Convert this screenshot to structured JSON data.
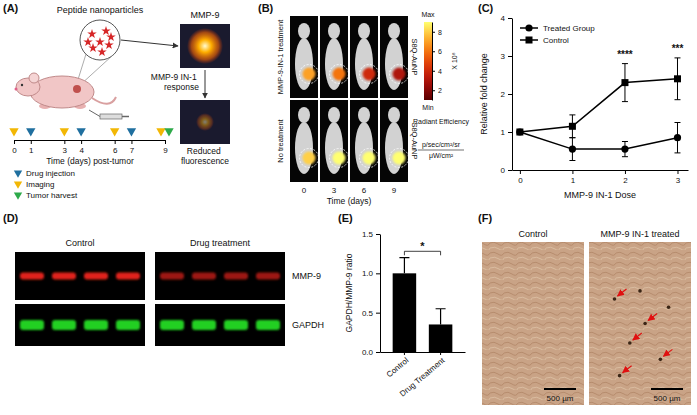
{
  "panels": {
    "A": {
      "letter": "(A)",
      "nanoparticle_label": "Peptide nanoparticles",
      "target_label": "MMP-9",
      "response_label": "MMP-9 IN-1 response",
      "result_label": "Reduced fluorescence",
      "timeline": {
        "title": "Time (days) post-tumor",
        "xlim": [
          0,
          9
        ],
        "xticks": [
          0,
          1,
          3,
          4,
          6,
          7,
          9
        ],
        "events": [
          {
            "name": "Drug injection",
            "color": "#1f6f9f",
            "days": [
              1,
              4,
              7
            ]
          },
          {
            "name": "Imaging",
            "color": "#f2b705",
            "days": [
              0,
              3,
              6,
              9
            ]
          },
          {
            "name": "Tumor harvest",
            "color": "#2eaa4a",
            "days": [
              9
            ]
          }
        ]
      }
    },
    "B": {
      "letter": "(B)",
      "row_labels": [
        "MMP-9-IN-1 treatment",
        "No treatment"
      ],
      "probe_labels": [
        "S8Q-AuNP",
        "S8Q-AuNP"
      ],
      "days": [
        0,
        3,
        6,
        9
      ],
      "xlabel": "Time (days)",
      "tumor_signal": [
        [
          7,
          6,
          4,
          3
        ],
        [
          8,
          9,
          9,
          9
        ]
      ],
      "colorbar": {
        "title": "Radiant Efficiency",
        "units": [
          "p/sec/cm²/sr",
          "μW/cm²"
        ],
        "scale_label": "X 10⁸",
        "max_label": "Max",
        "min_label": "Min",
        "range": [
          1,
          9
        ],
        "ticks": [
          2,
          4,
          6,
          8
        ]
      }
    },
    "C": {
      "letter": "(C)"
    },
    "D": {
      "letter": "(D)",
      "groups": [
        "Control",
        "Drug treatment"
      ],
      "bands": [
        {
          "name": "MMP-9",
          "color": "#e0201b"
        },
        {
          "name": "GAPDH",
          "color": "#22d022"
        }
      ]
    },
    "E": {
      "letter": "(E)"
    },
    "F": {
      "letter": "(F)",
      "images": [
        {
          "title": "Control",
          "scale_bar": "500 µm"
        },
        {
          "title": "MMP-9 IN-1 treated",
          "scale_bar": "500 µm"
        }
      ]
    }
  },
  "chart_data": [
    {
      "type": "line",
      "x": [
        0,
        1,
        2,
        3
      ],
      "xlim": [
        -0.15,
        3.2
      ],
      "xticks": [
        0,
        1,
        2,
        3
      ],
      "ylim": [
        0,
        4
      ],
      "yticks": [
        0,
        1,
        2,
        3,
        4
      ],
      "xlabel": "MMP-9 IN-1 Dose",
      "ylabel": "Relative fold change",
      "legend": "upper left",
      "series": [
        {
          "name": "Treated Group",
          "color": "#000000",
          "marker": "circle",
          "values": [
            1,
            0.55,
            0.55,
            0.85
          ],
          "errors": [
            0,
            0.3,
            0.2,
            0.4
          ]
        },
        {
          "name": "Control",
          "color": "#000000",
          "marker": "square",
          "values": [
            1,
            1.15,
            2.3,
            2.4
          ],
          "errors": [
            0,
            0.3,
            0.5,
            0.55
          ]
        }
      ],
      "annotations": [
        {
          "text": "****",
          "x": 2,
          "y": 2.95
        },
        {
          "text": "***",
          "x": 3,
          "y": 3.1
        }
      ]
    },
    {
      "type": "bar",
      "categories": [
        "Control",
        "Drug Treatment"
      ],
      "values": [
        1,
        0.35
      ],
      "errors": [
        0.2,
        0.2
      ],
      "color": "#000000",
      "ylim": [
        0,
        1.5
      ],
      "yticks": [
        {
          "value": 0,
          "label": "0.0"
        },
        {
          "value": 0.5,
          "label": "0.5"
        },
        {
          "value": 1,
          "label": "1.0"
        },
        {
          "value": 1.5,
          "label": "1.5"
        }
      ],
      "ylabel": "GAPDH/MMP-9 ratio",
      "annotations": [
        {
          "text": "*",
          "y": 1.28
        }
      ]
    }
  ]
}
